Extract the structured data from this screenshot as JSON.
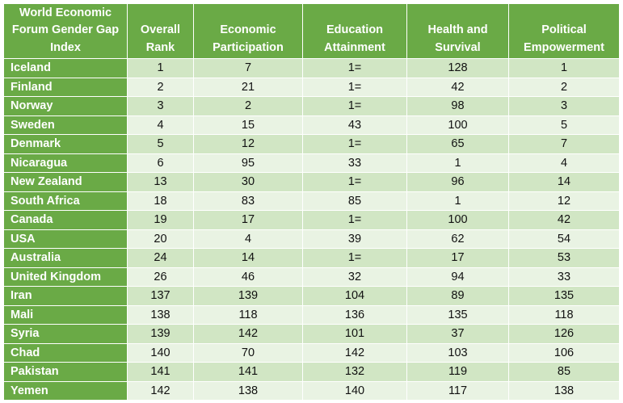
{
  "table": {
    "headers": [
      "World Economic Forum Gender Gap Index",
      "Overall Rank",
      "Economic Participation",
      "Education Attainment",
      "Health and Survival",
      "Political Empowerment"
    ],
    "rows": [
      [
        "Iceland",
        "1",
        "7",
        "1=",
        "128",
        "1"
      ],
      [
        "Finland",
        "2",
        "21",
        "1=",
        "42",
        "2"
      ],
      [
        "Norway",
        "3",
        "2",
        "1=",
        "98",
        "3"
      ],
      [
        "Sweden",
        "4",
        "15",
        "43",
        "100",
        "5"
      ],
      [
        "Denmark",
        "5",
        "12",
        "1=",
        "65",
        "7"
      ],
      [
        "Nicaragua",
        "6",
        "95",
        "33",
        "1",
        "4"
      ],
      [
        "New Zealand",
        "13",
        "30",
        "1=",
        "96",
        "14"
      ],
      [
        "South Africa",
        "18",
        "83",
        "85",
        "1",
        "12"
      ],
      [
        "Canada",
        "19",
        "17",
        "1=",
        "100",
        "42"
      ],
      [
        "USA",
        "20",
        "4",
        "39",
        "62",
        "54"
      ],
      [
        "Australia",
        "24",
        "14",
        "1=",
        "17",
        "53"
      ],
      [
        "United Kingdom",
        "26",
        "46",
        "32",
        "94",
        "33"
      ],
      [
        "Iran",
        "137",
        "139",
        "104",
        "89",
        "135"
      ],
      [
        "Mali",
        "138",
        "118",
        "136",
        "135",
        "118"
      ],
      [
        "Syria",
        "139",
        "142",
        "101",
        "37",
        "126"
      ],
      [
        "Chad",
        "140",
        "70",
        "142",
        "103",
        "106"
      ],
      [
        "Pakistan",
        "141",
        "141",
        "132",
        "119",
        "85"
      ],
      [
        "Yemen",
        "142",
        "138",
        "140",
        "117",
        "138"
      ]
    ]
  },
  "colors": {
    "header_bg": "#6aaa46",
    "header_text": "#ffffff",
    "row_band_dark": "#d1e6c4",
    "row_band_light": "#e9f3e3"
  }
}
